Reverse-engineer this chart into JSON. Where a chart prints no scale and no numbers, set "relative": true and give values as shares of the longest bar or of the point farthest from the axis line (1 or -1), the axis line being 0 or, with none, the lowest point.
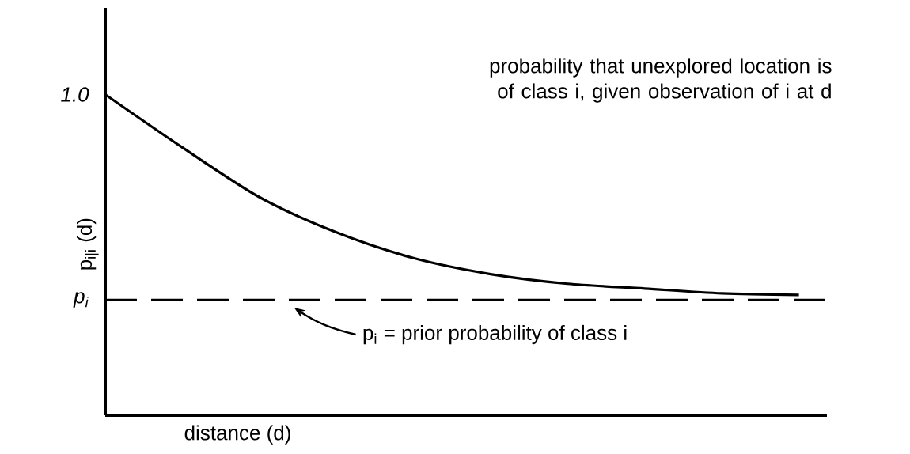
{
  "chart_data": {
    "type": "line",
    "title": "probability that unexplored location is of class i, given observation of i at d",
    "xlabel": "distance (d)",
    "ylabel": "p$_{i|i}$ (d)",
    "categories": [
      null,
      null,
      null,
      null,
      null,
      null,
      null,
      null,
      null,
      null
    ],
    "values": [
      1.0,
      0.835,
      0.68,
      0.57,
      0.49,
      0.44,
      0.41,
      0.395,
      0.38,
      0.375
    ],
    "color": "#000000",
    "relative": true,
    "annotations": [
      "1.0",
      "p$_{i}$"
    ],
    "ref_lines": [
      {
        "axis": "y",
        "value": 0.36,
        "label": "p$_{i}$ = prior probability of class i",
        "line_style": "dashed",
        "color": "#000000"
      }
    ]
  }
}
